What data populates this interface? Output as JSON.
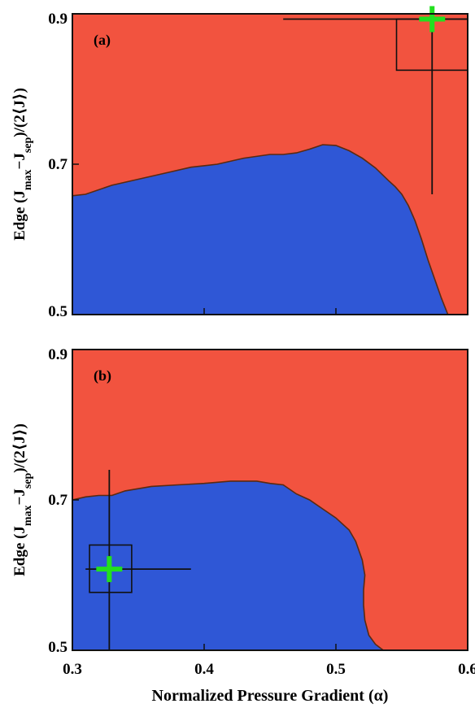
{
  "chart_data": [
    {
      "type": "area",
      "panel_label": "(a)",
      "xlim": [
        0.3,
        0.6
      ],
      "ylim": [
        0.5,
        0.9
      ],
      "xticks": [
        "0.3",
        "0.4",
        "0.5",
        "0.6"
      ],
      "yticks": [
        "0.5",
        "0.7",
        "0.9"
      ],
      "ylabel": {
        "pre": "Edge (J",
        "sub1": "max",
        "mid": "−J",
        "sub2": "sep",
        "post": ")/(2⟨J⟩)"
      },
      "xlabel": "",
      "colors": {
        "upper_region": "#f2533f",
        "lower_region": "#2f57d6"
      },
      "boundary": {
        "x": [
          0.3,
          0.31,
          0.33,
          0.35,
          0.37,
          0.39,
          0.41,
          0.43,
          0.45,
          0.46,
          0.47,
          0.48,
          0.49,
          0.5,
          0.51,
          0.52,
          0.53,
          0.54,
          0.545,
          0.55,
          0.555,
          0.56,
          0.565,
          0.57,
          0.575,
          0.58,
          0.585
        ],
        "y": [
          0.658,
          0.66,
          0.672,
          0.68,
          0.688,
          0.696,
          0.7,
          0.708,
          0.713,
          0.713,
          0.715,
          0.72,
          0.726,
          0.725,
          0.718,
          0.708,
          0.695,
          0.678,
          0.67,
          0.66,
          0.645,
          0.625,
          0.6,
          0.572,
          0.547,
          0.522,
          0.5
        ]
      },
      "marker": {
        "x": 0.573,
        "y": 0.893
      },
      "crosshair": {
        "x": 0.573,
        "y": 0.893,
        "x_range": [
          0.46,
          0.6
        ],
        "y_range": [
          0.66,
          0.9
        ],
        "box_x": [
          0.546,
          0.6
        ],
        "box_y": [
          0.825,
          0.893
        ]
      }
    },
    {
      "type": "area",
      "panel_label": "(b)",
      "xlim": [
        0.3,
        0.6
      ],
      "ylim": [
        0.5,
        0.9
      ],
      "xticks": [
        "0.3",
        "0.4",
        "0.5",
        "0.6"
      ],
      "yticks": [
        "0.5",
        "0.7",
        "0.9"
      ],
      "ylabel": {
        "pre": "Edge (J",
        "sub1": "max",
        "mid": "−J",
        "sub2": "sep",
        "post": ")/(2⟨J⟩)"
      },
      "xlabel": "Normalized Pressure Gradient (α)",
      "colors": {
        "upper_region": "#f2533f",
        "lower_region": "#2f57d6"
      },
      "boundary": {
        "x": [
          0.3,
          0.31,
          0.32,
          0.33,
          0.34,
          0.36,
          0.38,
          0.4,
          0.42,
          0.44,
          0.45,
          0.46,
          0.47,
          0.48,
          0.49,
          0.5,
          0.51,
          0.515,
          0.52,
          0.522,
          0.521,
          0.521,
          0.522,
          0.525,
          0.53,
          0.536
        ],
        "y": [
          0.7,
          0.704,
          0.706,
          0.706,
          0.712,
          0.718,
          0.72,
          0.722,
          0.725,
          0.725,
          0.722,
          0.72,
          0.708,
          0.7,
          0.688,
          0.676,
          0.66,
          0.645,
          0.62,
          0.6,
          0.58,
          0.56,
          0.54,
          0.52,
          0.508,
          0.5
        ]
      },
      "marker": {
        "x": 0.328,
        "y": 0.608
      },
      "crosshair": {
        "x": 0.328,
        "y": 0.608,
        "x_range": [
          0.31,
          0.39
        ],
        "y_range": [
          0.5,
          0.74
        ],
        "box_x": [
          0.313,
          0.345
        ],
        "box_y": [
          0.577,
          0.64
        ]
      }
    }
  ]
}
